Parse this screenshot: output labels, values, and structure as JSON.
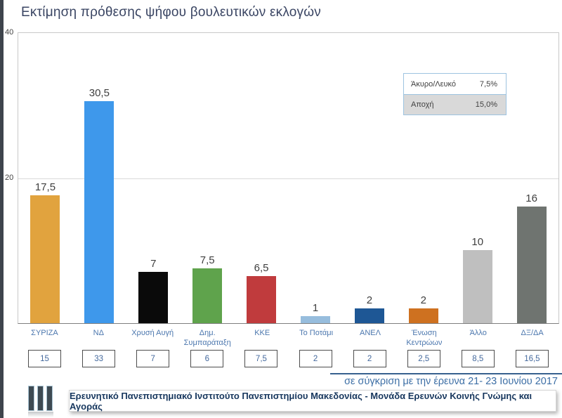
{
  "title": "Εκτίμηση πρόθεσης ψήφου βουλευτικών εκλογών",
  "chart_data": {
    "type": "bar",
    "categories": [
      "ΣΥΡΙΖΑ",
      "ΝΔ",
      "Χρυσή Αυγή",
      "Δημ. Συμπαράταξη",
      "ΚΚΕ",
      "Το Ποτάμι",
      "ΑΝΕΛ",
      "Ένωση Κεντρώων",
      "Άλλο",
      "ΔΞ/ΔΑ"
    ],
    "values": [
      17.5,
      30.5,
      7,
      7.5,
      6.5,
      1,
      2,
      2,
      10,
      16
    ],
    "value_labels": [
      "17,5",
      "30,5",
      "7",
      "7,5",
      "6,5",
      "1",
      "2",
      "2",
      "10",
      "16"
    ],
    "previous_values": [
      "15",
      "33",
      "7",
      "6",
      "7,5",
      "2",
      "2",
      "2,5",
      "8,5",
      "16,5"
    ],
    "bar_colors": [
      "#e1a33e",
      "#3e98eb",
      "#0a0a0a",
      "#5fa34c",
      "#c03b3d",
      "#97bddd",
      "#1e5795",
      "#ce7120",
      "#bfbfbf",
      "#6f7470"
    ],
    "title": "Εκτίμηση πρόθεσης ψήφου βουλευτικών εκλογών",
    "xlabel": "",
    "ylabel": "",
    "ylim": [
      0,
      40
    ],
    "yticks": [
      "40",
      "20"
    ],
    "grid": "horizontal gridline at 20",
    "legend_position": "top-right",
    "legend": {
      "rows": [
        {
          "label": "Άκυρο/Λευκό",
          "value": "7,5%"
        },
        {
          "label": "Αποχή",
          "value": "15,0%"
        }
      ]
    }
  },
  "yticks": {
    "top": "40",
    "mid": "20"
  },
  "footnote": "σε σύγκριση με την έρευνα 21- 23 Ιουνίου 2017",
  "footer": "Ερευνητικό Πανεπιστημιακό Ινστιτούτο Πανεπιστημίου Μακεδονίας - Μονάδα Ερευνών Κοινής Γνώμης και Αγοράς",
  "logo_icon": "bar-chart-logo"
}
